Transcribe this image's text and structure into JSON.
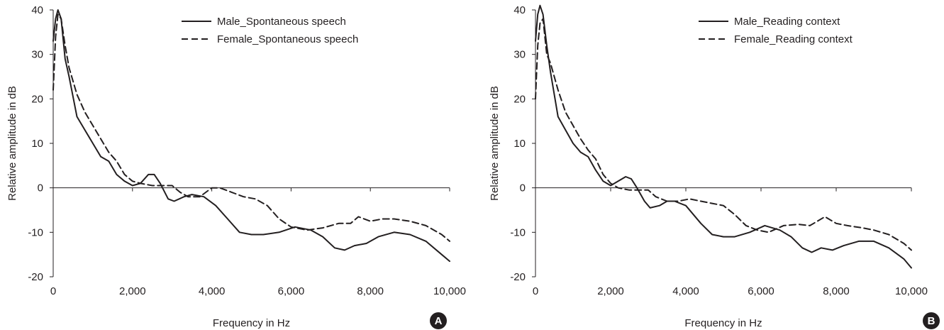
{
  "colors": {
    "line": "#231f20",
    "axis": "#231f20",
    "badge_fill": "#231f20",
    "badge_text": "#ffffff"
  },
  "chart_data": [
    {
      "type": "line",
      "panel_label": "A",
      "xlabel": "Frequency in Hz",
      "ylabel": "Relative amplitude in dB",
      "xlim": [
        0,
        10000
      ],
      "ylim": [
        -20,
        40
      ],
      "x_ticks": [
        "0",
        "2,000",
        "4,000",
        "6,000",
        "8,000",
        "10,000"
      ],
      "y_ticks": [
        "-20",
        "-10",
        "0",
        "10",
        "20",
        "30",
        "40"
      ],
      "grid": false,
      "legend_position": "top-right",
      "series": [
        {
          "name": "Male_Spontaneous speech",
          "style": "solid",
          "x": [
            0,
            60,
            120,
            200,
            300,
            400,
            600,
            800,
            1000,
            1200,
            1400,
            1600,
            1800,
            2000,
            2200,
            2400,
            2550,
            2700,
            2900,
            3050,
            3300,
            3500,
            3800,
            4100,
            4400,
            4700,
            5000,
            5300,
            5700,
            6100,
            6500,
            6800,
            7100,
            7350,
            7600,
            7900,
            8200,
            8600,
            9000,
            9400,
            9800,
            10000
          ],
          "y": [
            33,
            38,
            40,
            38,
            29,
            25,
            16,
            13,
            10,
            7,
            6,
            3,
            1.5,
            0.5,
            1,
            3,
            3,
            1,
            -2.5,
            -3,
            -2,
            -1.5,
            -2,
            -4,
            -7,
            -10,
            -10.5,
            -10.5,
            -10,
            -8.8,
            -9.5,
            -11,
            -13.5,
            -14,
            -13,
            -12.5,
            -11,
            -10,
            -10.5,
            -12,
            -15,
            -16.5
          ]
        },
        {
          "name": "Female_Spontaneous speech",
          "style": "dashed",
          "x": [
            0,
            60,
            120,
            200,
            300,
            400,
            600,
            800,
            1000,
            1200,
            1400,
            1600,
            1800,
            2000,
            2200,
            2500,
            2800,
            3000,
            3200,
            3400,
            3700,
            4000,
            4200,
            4500,
            4800,
            5100,
            5400,
            5700,
            6000,
            6400,
            6800,
            7200,
            7500,
            7700,
            8000,
            8300,
            8600,
            9000,
            9400,
            9800,
            10000
          ],
          "y": [
            22,
            34,
            39,
            38,
            32,
            27,
            21,
            17,
            14,
            11,
            8,
            6,
            3,
            1.5,
            1,
            0.5,
            0.5,
            0.5,
            -1,
            -2,
            -2,
            0,
            0,
            -1,
            -2,
            -2.5,
            -4,
            -7,
            -8.8,
            -9.5,
            -9,
            -8,
            -8,
            -6.5,
            -7.5,
            -7,
            -7,
            -7.5,
            -8.5,
            -10.5,
            -12
          ]
        }
      ]
    },
    {
      "type": "line",
      "panel_label": "B",
      "xlabel": "Frequency in Hz",
      "ylabel": "Relative amplitude in dB",
      "xlim": [
        0,
        10000
      ],
      "ylim": [
        -20,
        40
      ],
      "x_ticks": [
        "0",
        "2,000",
        "4,000",
        "6,000",
        "8,000",
        "10,000"
      ],
      "y_ticks": [
        "-20",
        "-10",
        "0",
        "10",
        "20",
        "30",
        "40"
      ],
      "grid": false,
      "legend_position": "top-right",
      "series": [
        {
          "name": "Male_Reading context",
          "style": "solid",
          "x": [
            0,
            60,
            120,
            200,
            300,
            400,
            600,
            800,
            1000,
            1200,
            1400,
            1600,
            1800,
            2000,
            2200,
            2400,
            2550,
            2700,
            2900,
            3050,
            3300,
            3500,
            3700,
            4000,
            4400,
            4700,
            5000,
            5300,
            5700,
            6100,
            6500,
            6800,
            7100,
            7350,
            7600,
            7900,
            8200,
            8600,
            9000,
            9400,
            9800,
            10000
          ],
          "y": [
            33,
            39,
            41,
            39,
            32,
            26,
            16,
            13,
            10,
            8,
            7,
            4,
            1.5,
            0.5,
            1.5,
            2.5,
            2,
            0,
            -3,
            -4.5,
            -4,
            -3,
            -3,
            -4,
            -8,
            -10.5,
            -11,
            -11,
            -10,
            -8.5,
            -9.5,
            -11,
            -13.5,
            -14.5,
            -13.5,
            -14,
            -13,
            -12,
            -12,
            -13.5,
            -16,
            -18
          ]
        },
        {
          "name": "Female_Reading context",
          "style": "dashed",
          "x": [
            0,
            60,
            120,
            200,
            300,
            400,
            600,
            800,
            1000,
            1200,
            1400,
            1600,
            1800,
            2000,
            2200,
            2500,
            2800,
            3000,
            3200,
            3500,
            3800,
            4100,
            4400,
            4700,
            5000,
            5300,
            5600,
            5900,
            6200,
            6600,
            7000,
            7300,
            7500,
            7700,
            8000,
            8300,
            8700,
            9000,
            9400,
            9800,
            10000
          ],
          "y": [
            20,
            32,
            37,
            38,
            30,
            28,
            22,
            17,
            14,
            11,
            8.5,
            6.5,
            3,
            1,
            0,
            -0.5,
            -0.5,
            -0.5,
            -2,
            -3,
            -3,
            -2.5,
            -3,
            -3.5,
            -4,
            -6,
            -8.5,
            -9.5,
            -10,
            -8.5,
            -8.2,
            -8.5,
            -7.5,
            -6.5,
            -8,
            -8.5,
            -9,
            -9.5,
            -10.5,
            -12.5,
            -14
          ]
        }
      ]
    }
  ]
}
